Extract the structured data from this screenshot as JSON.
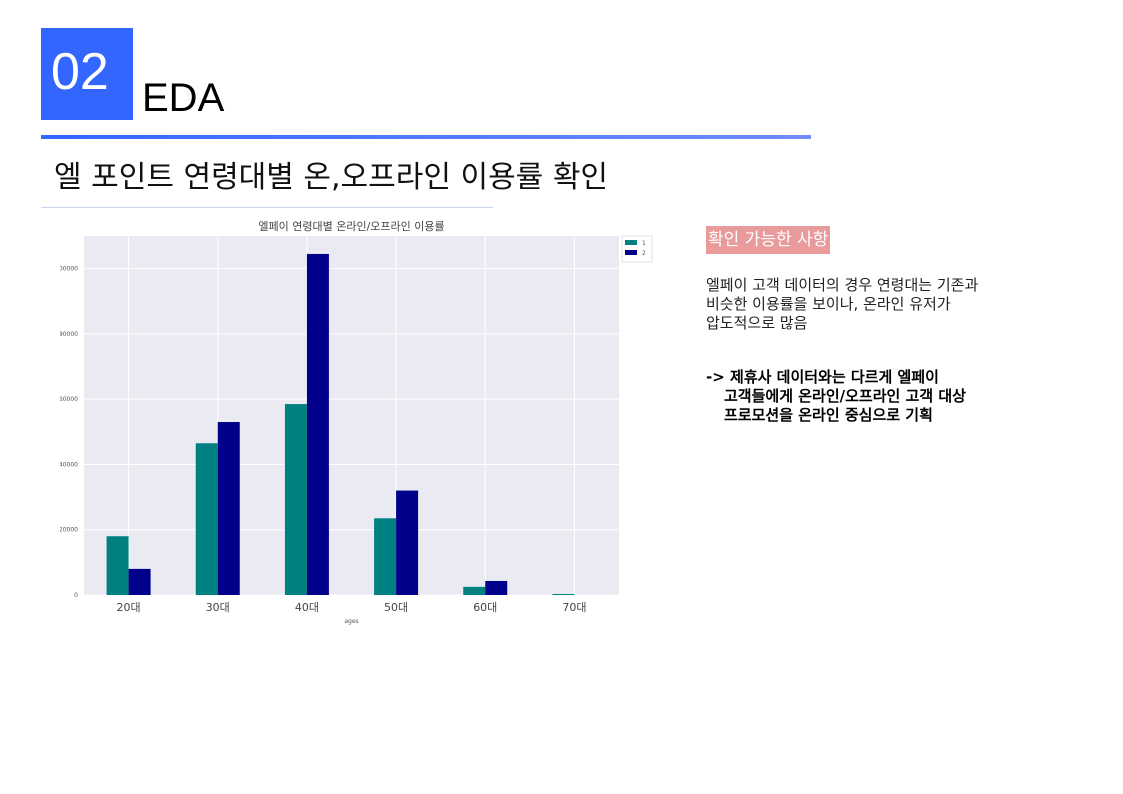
{
  "header": {
    "section_number": "02",
    "section_label": "EDA",
    "accent_color": "#3366ff"
  },
  "page": {
    "heading": "엘 포인트 연령대별 온,오프라인 이용률 확인"
  },
  "notes": {
    "tag": "확인 가능한 사항",
    "tag_color": "#e99a9a",
    "description": [
      "엘페이 고객 데이터의 경우 연령대는 기존과",
      "비슷한 이용률을 보이나, 온라인 유저가",
      "압도적으로 많음"
    ],
    "conclusion": [
      "-> 제휴사 데이터와는 다르게 엘페이",
      "고객들에게 온라인/오프라인 고객 대상",
      "프로모션을 온라인 중심으로 기획"
    ]
  },
  "chart_data": {
    "type": "bar",
    "title": "엘페이 연령대별 온라인/오프라인 이용률",
    "xlabel": "ages",
    "ylabel": "",
    "categories": [
      "20대",
      "30대",
      "40대",
      "50대",
      "60대",
      "70대"
    ],
    "series": [
      {
        "name": "1",
        "color": "#008080",
        "values": [
          18000,
          46500,
          58500,
          23500,
          2500,
          300
        ]
      },
      {
        "name": "2",
        "color": "#00008b",
        "values": [
          8000,
          53000,
          104500,
          32000,
          4300,
          0
        ]
      }
    ],
    "ylim": [
      0,
      110000
    ],
    "yticks": [
      0,
      20000,
      40000,
      60000,
      80000,
      100000
    ],
    "ytick_labels": [
      "0",
      "20000",
      "40000",
      "60000",
      "80000",
      "100000"
    ],
    "grid": true,
    "legend_position": "top-right",
    "background": "#eaeaf2"
  }
}
